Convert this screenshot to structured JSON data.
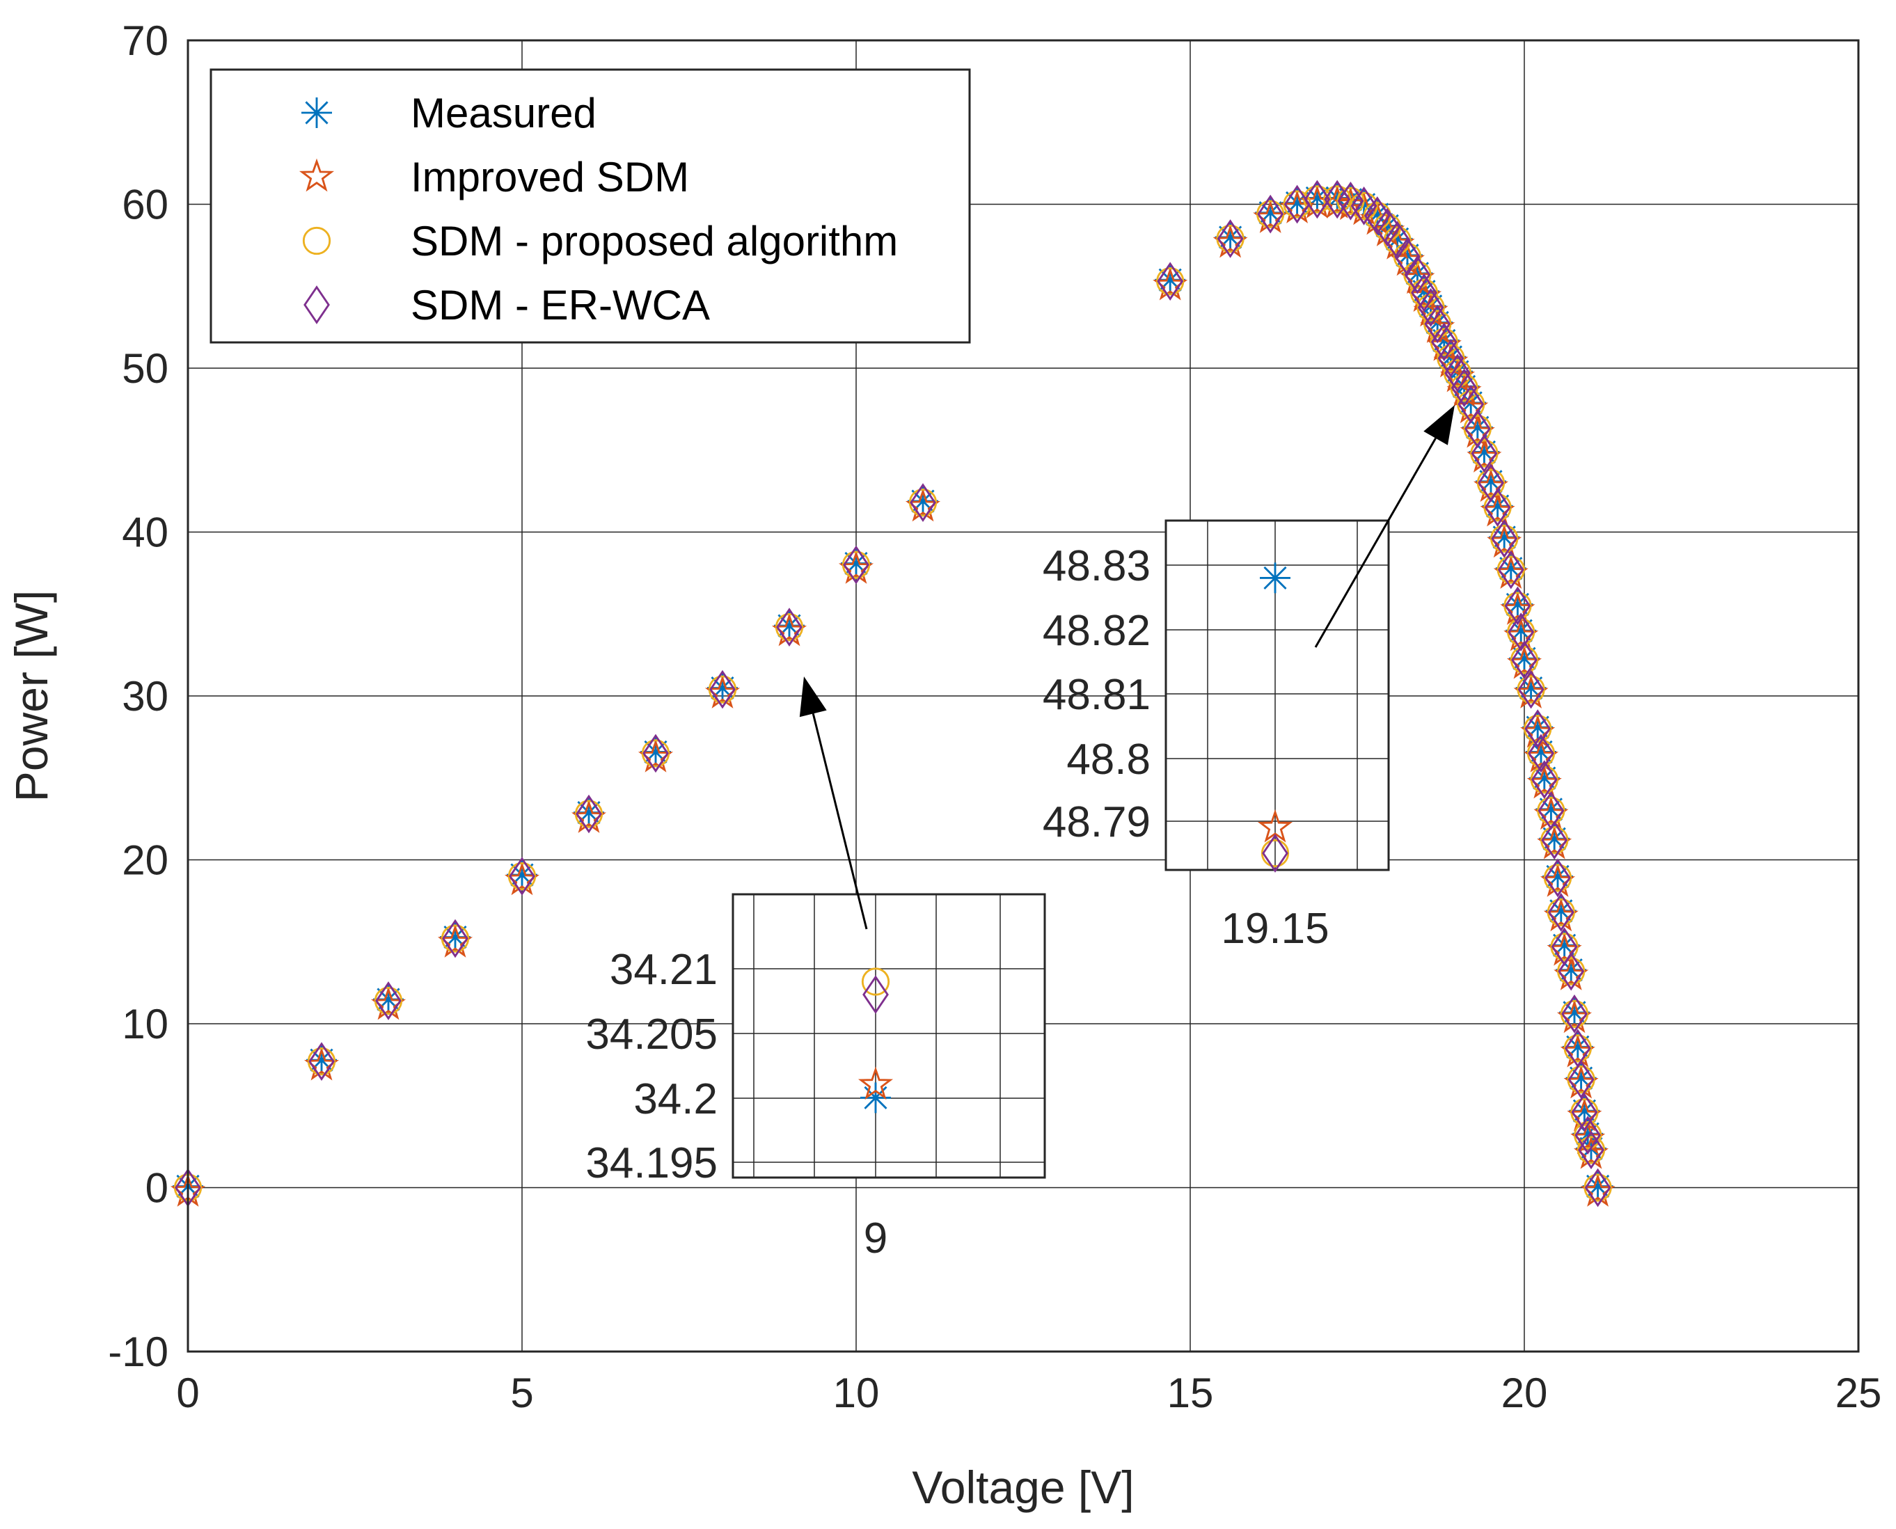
{
  "chart_data": {
    "type": "scatter",
    "xlabel": "Voltage [V]",
    "ylabel": "Power [W]",
    "xlim": [
      0,
      25
    ],
    "ylim": [
      -10,
      70
    ],
    "xticks": [
      0,
      5,
      10,
      15,
      20,
      25
    ],
    "yticks": [
      -10,
      0,
      10,
      20,
      30,
      40,
      50,
      60,
      70
    ],
    "grid": true,
    "legend_position": "top-left",
    "series": [
      {
        "name": "Measured",
        "marker": "asterisk",
        "color": "#0072BD"
      },
      {
        "name": "Improved SDM",
        "marker": "pentagram",
        "color": "#D95319"
      },
      {
        "name": "SDM - proposed algorithm",
        "marker": "circle",
        "color": "#EDB120"
      },
      {
        "name": "SDM - ER-WCA",
        "marker": "diamond",
        "color": "#7E2F8E"
      }
    ],
    "points": [
      [
        0,
        0
      ],
      [
        2,
        7.7
      ],
      [
        3,
        11.4
      ],
      [
        4,
        15.2
      ],
      [
        5,
        19.0
      ],
      [
        6,
        22.8
      ],
      [
        7,
        26.5
      ],
      [
        8,
        30.4
      ],
      [
        9,
        34.2
      ],
      [
        10,
        38.0
      ],
      [
        11,
        41.8
      ],
      [
        14.7,
        55.3
      ],
      [
        15.6,
        57.9
      ],
      [
        16.2,
        59.4
      ],
      [
        16.6,
        60.0
      ],
      [
        16.9,
        60.3
      ],
      [
        17.2,
        60.3
      ],
      [
        17.4,
        60.2
      ],
      [
        17.6,
        59.9
      ],
      [
        17.8,
        59.3
      ],
      [
        17.95,
        58.6
      ],
      [
        18.1,
        57.8
      ],
      [
        18.25,
        56.8
      ],
      [
        18.4,
        55.7
      ],
      [
        18.5,
        54.6
      ],
      [
        18.6,
        53.7
      ],
      [
        18.7,
        52.7
      ],
      [
        18.8,
        51.6
      ],
      [
        18.9,
        50.6
      ],
      [
        19.0,
        49.7
      ],
      [
        19.1,
        48.8
      ],
      [
        19.2,
        47.8
      ],
      [
        19.3,
        46.3
      ],
      [
        19.4,
        44.8
      ],
      [
        19.5,
        43.0
      ],
      [
        19.6,
        41.5
      ],
      [
        19.7,
        39.6
      ],
      [
        19.8,
        37.7
      ],
      [
        19.9,
        35.5
      ],
      [
        19.95,
        33.9
      ],
      [
        20.0,
        32.2
      ],
      [
        20.1,
        30.4
      ],
      [
        20.2,
        28.0
      ],
      [
        20.25,
        26.5
      ],
      [
        20.3,
        24.9
      ],
      [
        20.4,
        23.0
      ],
      [
        20.45,
        21.2
      ],
      [
        20.5,
        18.9
      ],
      [
        20.55,
        16.8
      ],
      [
        20.6,
        14.7
      ],
      [
        20.7,
        13.2
      ],
      [
        20.75,
        10.6
      ],
      [
        20.8,
        8.5
      ],
      [
        20.85,
        6.6
      ],
      [
        20.9,
        4.6
      ],
      [
        20.95,
        3.2
      ],
      [
        21.0,
        2.3
      ],
      [
        21.1,
        0.0
      ]
    ],
    "insets": [
      {
        "yticks": [
          "34.21",
          "34.205",
          "34.2",
          "34.195"
        ],
        "xtick": "9",
        "values": {
          "Measured": 34.2,
          "Improved SDM": 34.201,
          "SDM - proposed algorithm": 34.209,
          "SDM - ER-WCA": 34.208
        }
      },
      {
        "yticks": [
          "48.83",
          "48.82",
          "48.81",
          "48.8",
          "48.79"
        ],
        "xtick": "19.15",
        "values": {
          "Measured": 48.828,
          "Improved SDM": 48.789,
          "SDM - proposed algorithm": 48.785,
          "SDM - ER-WCA": 48.785
        }
      }
    ]
  }
}
